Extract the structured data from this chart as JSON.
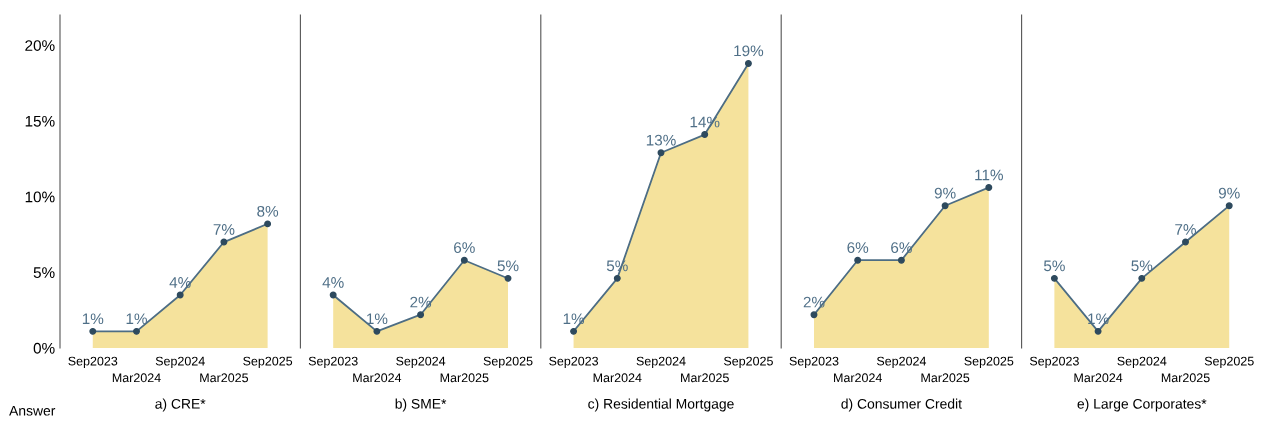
{
  "chart_data": [
    {
      "type": "area",
      "xlabel": "a) CRE*",
      "categories": [
        "Sep2023",
        "Mar2024",
        "Sep2024",
        "Mar2025",
        "Sep2025"
      ],
      "ylim": [
        0,
        22
      ],
      "yticks": [
        {
          "value": 0,
          "label": "0%"
        },
        {
          "value": 5,
          "label": "5%"
        },
        {
          "value": 10,
          "label": "10%"
        },
        {
          "value": 15,
          "label": "15%"
        },
        {
          "value": 20,
          "label": "20%"
        }
      ],
      "marker": "circle",
      "annotations": [
        "Answer"
      ],
      "series": [
        {
          "color": "#eccb4a",
          "values": [
            1.1,
            1.1,
            3.5,
            7.0,
            8.2
          ],
          "value_labels": [
            "1%",
            "1%",
            "4%",
            "7%",
            "8%"
          ]
        }
      ]
    },
    {
      "type": "area",
      "xlabel": "b) SME*",
      "categories": [
        "Sep2023",
        "Mar2024",
        "Sep2024",
        "Mar2025",
        "Sep2025"
      ],
      "ylim": [
        0,
        22
      ],
      "tick_labels": "x",
      "marker": "circle",
      "series": [
        {
          "color": "#eccb4a",
          "values": [
            3.5,
            1.1,
            2.2,
            5.8,
            4.6
          ],
          "value_labels": [
            "4%",
            "1%",
            "2%",
            "6%",
            "5%"
          ]
        }
      ]
    },
    {
      "type": "area",
      "xlabel": "c) Residential Mortgage",
      "categories": [
        "Sep2023",
        "Mar2024",
        "Sep2024",
        "Mar2025",
        "Sep2025"
      ],
      "ylim": [
        0,
        22
      ],
      "tick_labels": "x",
      "marker": "circle",
      "series": [
        {
          "color": "#eccb4a",
          "values": [
            1.1,
            4.6,
            12.9,
            14.1,
            18.8
          ],
          "value_labels": [
            "1%",
            "5%",
            "13%",
            "14%",
            "19%"
          ]
        }
      ]
    },
    {
      "type": "area",
      "xlabel": "d) Consumer Credit",
      "categories": [
        "Sep2023",
        "Mar2024",
        "Sep2024",
        "Mar2025",
        "Sep2025"
      ],
      "ylim": [
        0,
        22
      ],
      "tick_labels": "x",
      "marker": "circle",
      "series": [
        {
          "color": "#eccb4a",
          "values": [
            2.2,
            5.8,
            5.8,
            9.4,
            10.6
          ],
          "value_labels": [
            "2%",
            "6%",
            "6%",
            "9%",
            "11%"
          ]
        }
      ]
    },
    {
      "type": "area",
      "xlabel": "e) Large Corporates*",
      "categories": [
        "Sep2023",
        "Mar2024",
        "Sep2024",
        "Mar2025",
        "Sep2025"
      ],
      "ylim": [
        0,
        22
      ],
      "tick_labels": "x",
      "marker": "circle",
      "series": [
        {
          "color": "#eccb4a",
          "values": [
            4.6,
            1.1,
            4.6,
            7.0,
            9.4
          ],
          "value_labels": [
            "5%",
            "1%",
            "5%",
            "7%",
            "9%"
          ]
        }
      ]
    }
  ]
}
